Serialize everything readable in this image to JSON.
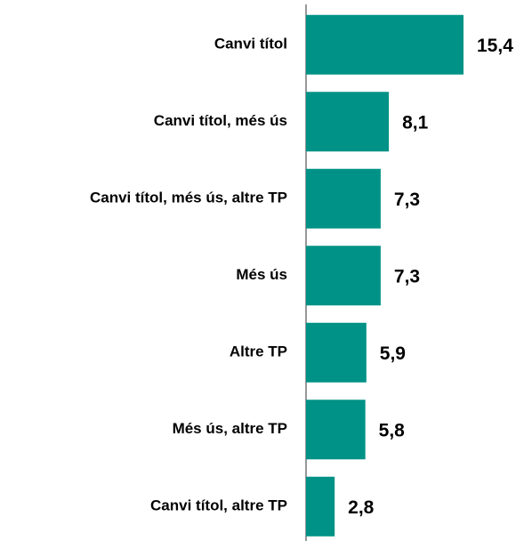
{
  "chart_data": {
    "type": "barh",
    "categories": [
      "Canvi títol",
      "Canvi títol, més ús",
      "Canvi títol, més ús, altre TP",
      "Més ús",
      "Altre TP",
      "Més ús, altre TP",
      "Canvi títol, altre TP"
    ],
    "values": [
      15.4,
      8.1,
      7.3,
      7.3,
      5.9,
      5.8,
      2.8
    ],
    "value_labels": [
      "15,4",
      "8,1",
      "7,3",
      "7,3",
      "5,9",
      "5,8",
      "2,8"
    ],
    "color": "#009286"
  }
}
